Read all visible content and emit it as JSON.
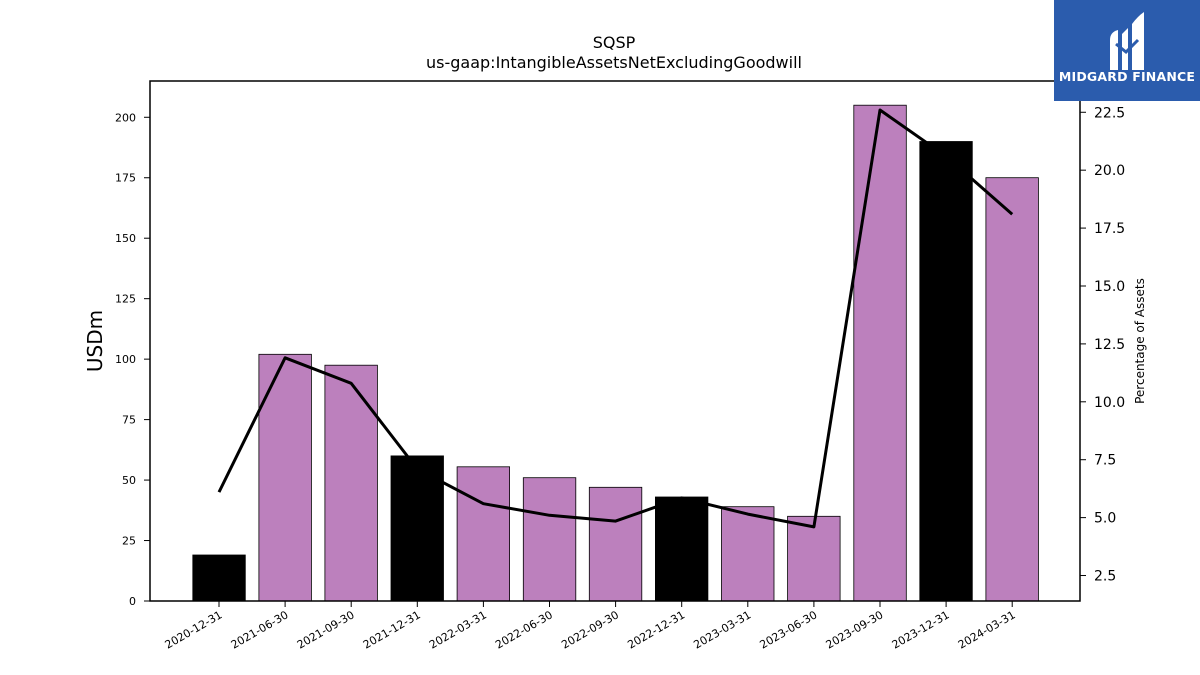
{
  "chart_data": {
    "type": "bar",
    "title": "SQSP",
    "subtitle": "us-gaap:IntangibleAssetsNetExcludingGoodwill",
    "ylabel": "USDm",
    "y2label": "Percentage of Assets",
    "categories": [
      "2020-12-31",
      "2021-06-30",
      "2021-09-30",
      "2021-12-31",
      "2022-03-31",
      "2022-06-30",
      "2022-09-30",
      "2022-12-31",
      "2023-03-31",
      "2023-06-30",
      "2023-09-30",
      "2023-12-31",
      "2024-03-31"
    ],
    "values": [
      19,
      102,
      97.5,
      60,
      55.5,
      51,
      47,
      43,
      39,
      35,
      205,
      190,
      175
    ],
    "bar_colors": [
      "#000000",
      "#bc80bd",
      "#bc80bd",
      "#000000",
      "#bc80bd",
      "#bc80bd",
      "#bc80bd",
      "#000000",
      "#bc80bd",
      "#bc80bd",
      "#bc80bd",
      "#000000",
      "#bc80bd"
    ],
    "ylim": [
      0,
      215
    ],
    "yticks": [
      0,
      25,
      50,
      75,
      100,
      125,
      150,
      175,
      200
    ],
    "line": {
      "values": [
        6.1,
        11.9,
        10.8,
        7.1,
        5.6,
        5.1,
        4.85,
        5.85,
        5.15,
        4.6,
        22.6,
        20.6,
        18.1
      ],
      "color": "#000000"
    },
    "y2lim": [
      1.4,
      23.85
    ],
    "y2ticks": [
      "2.5",
      "5.0",
      "7.5",
      "10.0",
      "12.5",
      "15.0",
      "17.5",
      "20.0",
      "22.5"
    ],
    "grid": false,
    "legend": "none"
  },
  "logo": {
    "text": "MIDGARD FINANCE"
  }
}
